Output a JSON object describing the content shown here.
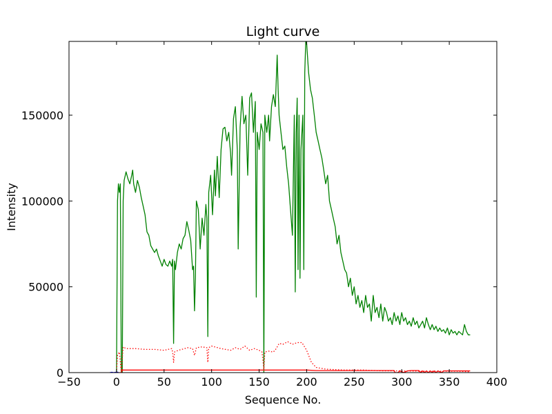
{
  "chart_data": {
    "type": "line",
    "title": "Light curve",
    "xlabel": "Sequence No.",
    "ylabel": "Intensity",
    "xlim": [
      -50,
      400
    ],
    "ylim": [
      0,
      193000
    ],
    "xticks": [
      -50,
      0,
      50,
      100,
      150,
      200,
      250,
      300,
      350,
      400
    ],
    "xtick_labels": [
      "−50",
      "0",
      "50",
      "100",
      "150",
      "200",
      "250",
      "300",
      "350",
      "400"
    ],
    "yticks": [
      0,
      50000,
      100000,
      150000
    ],
    "ytick_labels": [
      "0",
      "50000",
      "100000",
      "150000"
    ],
    "grid": false,
    "series": [
      {
        "color": "#008000",
        "style": "solid",
        "points": [
          [
            0,
            0
          ],
          [
            1,
            100000
          ],
          [
            2,
            110000
          ],
          [
            3,
            105000
          ],
          [
            4,
            110000
          ],
          [
            5,
            0
          ],
          [
            6,
            0
          ],
          [
            7,
            100000
          ],
          [
            8,
            112000
          ],
          [
            10,
            117000
          ],
          [
            12,
            113000
          ],
          [
            14,
            110000
          ],
          [
            16,
            115000
          ],
          [
            17,
            118000
          ],
          [
            18,
            110000
          ],
          [
            20,
            105000
          ],
          [
            22,
            112000
          ],
          [
            24,
            108000
          ],
          [
            26,
            102000
          ],
          [
            28,
            97000
          ],
          [
            30,
            92000
          ],
          [
            32,
            82000
          ],
          [
            34,
            80000
          ],
          [
            36,
            74000
          ],
          [
            38,
            72000
          ],
          [
            40,
            70000
          ],
          [
            42,
            72000
          ],
          [
            44,
            68000
          ],
          [
            46,
            65000
          ],
          [
            48,
            62000
          ],
          [
            50,
            66000
          ],
          [
            52,
            63000
          ],
          [
            54,
            62000
          ],
          [
            56,
            65000
          ],
          [
            58,
            62000
          ],
          [
            59,
            66000
          ],
          [
            60,
            17000
          ],
          [
            61,
            65000
          ],
          [
            62,
            60000
          ],
          [
            64,
            70000
          ],
          [
            66,
            75000
          ],
          [
            68,
            72000
          ],
          [
            70,
            78000
          ],
          [
            72,
            80000
          ],
          [
            74,
            88000
          ],
          [
            76,
            83000
          ],
          [
            78,
            77000
          ],
          [
            80,
            60000
          ],
          [
            81,
            62000
          ],
          [
            82,
            36000
          ],
          [
            83,
            55000
          ],
          [
            84,
            100000
          ],
          [
            86,
            95000
          ],
          [
            88,
            72000
          ],
          [
            90,
            90000
          ],
          [
            92,
            80000
          ],
          [
            94,
            98000
          ],
          [
            95,
            90000
          ],
          [
            96,
            21000
          ],
          [
            97,
            105000
          ],
          [
            99,
            115000
          ],
          [
            101,
            92000
          ],
          [
            103,
            118000
          ],
          [
            104,
            103000
          ],
          [
            106,
            126000
          ],
          [
            108,
            102000
          ],
          [
            110,
            130000
          ],
          [
            112,
            142000
          ],
          [
            114,
            143000
          ],
          [
            116,
            135000
          ],
          [
            118,
            140000
          ],
          [
            120,
            128000
          ],
          [
            121,
            115000
          ],
          [
            123,
            148000
          ],
          [
            125,
            155000
          ],
          [
            127,
            130000
          ],
          [
            128,
            72000
          ],
          [
            130,
            143000
          ],
          [
            132,
            161000
          ],
          [
            134,
            145000
          ],
          [
            136,
            150000
          ],
          [
            138,
            115000
          ],
          [
            140,
            160000
          ],
          [
            142,
            163000
          ],
          [
            144,
            140000
          ],
          [
            146,
            158000
          ],
          [
            147,
            44000
          ],
          [
            148,
            140000
          ],
          [
            150,
            130000
          ],
          [
            152,
            145000
          ],
          [
            154,
            140000
          ],
          [
            155,
            0
          ],
          [
            156,
            150000
          ],
          [
            158,
            140000
          ],
          [
            160,
            150000
          ],
          [
            161,
            135000
          ],
          [
            163,
            155000
          ],
          [
            165,
            162000
          ],
          [
            167,
            155000
          ],
          [
            169,
            185000
          ],
          [
            170,
            165000
          ],
          [
            171,
            150000
          ],
          [
            173,
            140000
          ],
          [
            175,
            130000
          ],
          [
            177,
            132000
          ],
          [
            179,
            120000
          ],
          [
            181,
            110000
          ],
          [
            183,
            95000
          ],
          [
            185,
            80000
          ],
          [
            187,
            150000
          ],
          [
            188,
            47000
          ],
          [
            189,
            140000
          ],
          [
            190,
            160000
          ],
          [
            191,
            60000
          ],
          [
            192,
            150000
          ],
          [
            193,
            55000
          ],
          [
            194,
            130000
          ],
          [
            196,
            150000
          ],
          [
            197,
            60000
          ],
          [
            198,
            175000
          ],
          [
            199,
            193000
          ],
          [
            200,
            192000
          ],
          [
            202,
            175000
          ],
          [
            204,
            165000
          ],
          [
            206,
            160000
          ],
          [
            208,
            150000
          ],
          [
            210,
            140000
          ],
          [
            212,
            135000
          ],
          [
            214,
            130000
          ],
          [
            216,
            125000
          ],
          [
            218,
            118000
          ],
          [
            220,
            110000
          ],
          [
            222,
            115000
          ],
          [
            224,
            100000
          ],
          [
            226,
            95000
          ],
          [
            228,
            90000
          ],
          [
            230,
            85000
          ],
          [
            232,
            75000
          ],
          [
            234,
            80000
          ],
          [
            236,
            70000
          ],
          [
            238,
            65000
          ],
          [
            240,
            60000
          ],
          [
            242,
            58000
          ],
          [
            244,
            50000
          ],
          [
            246,
            55000
          ],
          [
            248,
            45000
          ],
          [
            250,
            50000
          ],
          [
            252,
            40000
          ],
          [
            254,
            45000
          ],
          [
            256,
            38000
          ],
          [
            258,
            42000
          ],
          [
            260,
            35000
          ],
          [
            262,
            45000
          ],
          [
            264,
            38000
          ],
          [
            266,
            40000
          ],
          [
            268,
            30000
          ],
          [
            270,
            45000
          ],
          [
            272,
            35000
          ],
          [
            274,
            38000
          ],
          [
            276,
            32000
          ],
          [
            278,
            40000
          ],
          [
            280,
            30000
          ],
          [
            282,
            38000
          ],
          [
            284,
            35000
          ],
          [
            286,
            30000
          ],
          [
            288,
            32000
          ],
          [
            290,
            28000
          ],
          [
            292,
            35000
          ],
          [
            294,
            30000
          ],
          [
            296,
            33000
          ],
          [
            298,
            28000
          ],
          [
            300,
            35000
          ],
          [
            302,
            30000
          ],
          [
            304,
            32000
          ],
          [
            306,
            28000
          ],
          [
            308,
            30000
          ],
          [
            310,
            27000
          ],
          [
            312,
            32000
          ],
          [
            314,
            28000
          ],
          [
            316,
            30000
          ],
          [
            318,
            26000
          ],
          [
            320,
            28000
          ],
          [
            322,
            30000
          ],
          [
            324,
            26000
          ],
          [
            326,
            32000
          ],
          [
            328,
            28000
          ],
          [
            330,
            25000
          ],
          [
            332,
            28000
          ],
          [
            334,
            25000
          ],
          [
            336,
            27000
          ],
          [
            338,
            24000
          ],
          [
            340,
            26000
          ],
          [
            342,
            24000
          ],
          [
            344,
            25000
          ],
          [
            346,
            23000
          ],
          [
            348,
            26000
          ],
          [
            350,
            22000
          ],
          [
            352,
            25000
          ],
          [
            354,
            23000
          ],
          [
            356,
            24000
          ],
          [
            358,
            22000
          ],
          [
            360,
            24000
          ],
          [
            362,
            23000
          ],
          [
            364,
            22000
          ],
          [
            366,
            28000
          ],
          [
            368,
            24000
          ],
          [
            370,
            22000
          ],
          [
            372,
            22000
          ]
        ]
      },
      {
        "color": "#ff0000",
        "style": "dotted",
        "points": [
          [
            0,
            0
          ],
          [
            1,
            10000
          ],
          [
            3,
            12000
          ],
          [
            5,
            0
          ],
          [
            7,
            15000
          ],
          [
            10,
            14000
          ],
          [
            20,
            14000
          ],
          [
            30,
            13500
          ],
          [
            40,
            13500
          ],
          [
            50,
            13000
          ],
          [
            58,
            14000
          ],
          [
            59,
            12000
          ],
          [
            60,
            6000
          ],
          [
            61,
            12000
          ],
          [
            65,
            13000
          ],
          [
            75,
            14500
          ],
          [
            80,
            14000
          ],
          [
            82,
            10000
          ],
          [
            84,
            14500
          ],
          [
            90,
            15000
          ],
          [
            95,
            14500
          ],
          [
            96,
            6000
          ],
          [
            97,
            14500
          ],
          [
            100,
            15500
          ],
          [
            110,
            14000
          ],
          [
            120,
            13000
          ],
          [
            125,
            14500
          ],
          [
            130,
            13500
          ],
          [
            135,
            15500
          ],
          [
            140,
            13000
          ],
          [
            145,
            14000
          ],
          [
            150,
            13000
          ],
          [
            153,
            12000
          ],
          [
            155,
            2000
          ],
          [
            156,
            12000
          ],
          [
            160,
            12500
          ],
          [
            165,
            12000
          ],
          [
            168,
            14000
          ],
          [
            171,
            17000
          ],
          [
            175,
            16500
          ],
          [
            180,
            18000
          ],
          [
            185,
            16500
          ],
          [
            190,
            17500
          ],
          [
            195,
            17500
          ],
          [
            200,
            13000
          ],
          [
            205,
            6000
          ],
          [
            210,
            3000
          ],
          [
            220,
            2000
          ],
          [
            240,
            1500
          ],
          [
            260,
            1500
          ],
          [
            280,
            1000
          ],
          [
            300,
            1000
          ],
          [
            320,
            800
          ],
          [
            340,
            800
          ],
          [
            360,
            800
          ],
          [
            372,
            500
          ]
        ]
      },
      {
        "color": "#ff0000",
        "style": "solid",
        "points": [
          [
            0,
            0
          ],
          [
            5,
            0
          ],
          [
            6,
            1500
          ],
          [
            100,
            1500
          ],
          [
            200,
            1500
          ],
          [
            210,
            1200
          ],
          [
            292,
            1200
          ],
          [
            293,
            0
          ],
          [
            296,
            0
          ],
          [
            298,
            1000
          ],
          [
            302,
            0
          ],
          [
            306,
            1000
          ],
          [
            310,
            1200
          ],
          [
            318,
            1200
          ],
          [
            320,
            0
          ],
          [
            322,
            1000
          ],
          [
            324,
            0
          ],
          [
            326,
            1000
          ],
          [
            328,
            0
          ],
          [
            330,
            1000
          ],
          [
            332,
            0
          ],
          [
            334,
            1000
          ],
          [
            336,
            0
          ],
          [
            338,
            1000
          ],
          [
            342,
            0
          ],
          [
            344,
            1000
          ],
          [
            352,
            1000
          ],
          [
            372,
            1000
          ]
        ]
      },
      {
        "color": "#0000ff",
        "style": "solid",
        "points": [
          [
            -7,
            0
          ],
          [
            -5,
            200
          ],
          [
            -3,
            0
          ],
          [
            -1,
            200
          ],
          [
            0,
            0
          ],
          [
            1,
            300
          ],
          [
            2,
            0
          ]
        ]
      }
    ]
  }
}
